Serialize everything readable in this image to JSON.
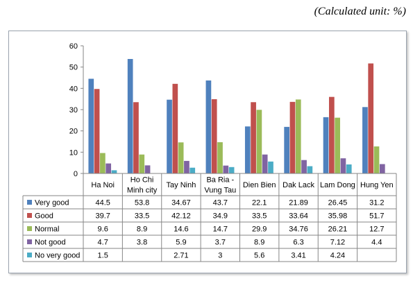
{
  "unit_note": "(Calculated unit: %)",
  "chart_data": {
    "type": "bar",
    "categories": [
      "Ha Noi",
      "Ho Chi Minh city",
      "Tay Ninh",
      "Ba Ria - Vung Tau",
      "Dien Bien",
      "Dak Lack",
      "Lam Dong",
      "Hung Yen"
    ],
    "category_lines": [
      [
        "Ha Noi"
      ],
      [
        "Ho Chi",
        "Minh city"
      ],
      [
        "Tay Ninh"
      ],
      [
        "Ba Ria -",
        "Vung Tau"
      ],
      [
        "Dien Bien"
      ],
      [
        "Dak Lack"
      ],
      [
        "Lam Dong"
      ],
      [
        "Hung Yen"
      ]
    ],
    "ylim": [
      0,
      60
    ],
    "yticks": [
      0,
      10,
      20,
      30,
      40,
      50,
      60
    ],
    "grid": false,
    "legend": "data-table",
    "series": [
      {
        "name": "Very good",
        "color": "#4F81BD",
        "values": [
          44.5,
          53.8,
          34.67,
          43.7,
          22.1,
          21.89,
          26.45,
          31.2
        ],
        "labels": [
          "44.5",
          "53.8",
          "34.67",
          "43.7",
          "22.1",
          "21.89",
          "26.45",
          "31.2"
        ]
      },
      {
        "name": "Good",
        "color": "#C0504D",
        "values": [
          39.7,
          33.5,
          42.12,
          34.9,
          33.5,
          33.64,
          35.98,
          51.7
        ],
        "labels": [
          "39.7",
          "33.5",
          "42.12",
          "34.9",
          "33.5",
          "33.64",
          "35.98",
          "51.7"
        ]
      },
      {
        "name": "Normal",
        "color": "#9BBB59",
        "values": [
          9.6,
          8.9,
          14.6,
          14.7,
          29.9,
          34.76,
          26.21,
          12.7
        ],
        "labels": [
          "9.6",
          "8.9",
          "14.6",
          "14.7",
          "29.9",
          "34.76",
          "26.21",
          "12.7"
        ]
      },
      {
        "name": "Not good",
        "color": "#8064A2",
        "values": [
          4.7,
          3.8,
          5.9,
          3.7,
          8.9,
          6.3,
          7.12,
          4.4
        ],
        "labels": [
          "4.7",
          "3.8",
          "5.9",
          "3.7",
          "8.9",
          "6.3",
          "7.12",
          "4.4"
        ]
      },
      {
        "name": "No very good",
        "color": "#4BACC6",
        "values": [
          1.5,
          null,
          2.71,
          3,
          5.6,
          3.41,
          4.24,
          null
        ],
        "labels": [
          "1.5",
          "",
          "2.71",
          "3",
          "5.6",
          "3.41",
          "4.24",
          ""
        ]
      }
    ]
  }
}
